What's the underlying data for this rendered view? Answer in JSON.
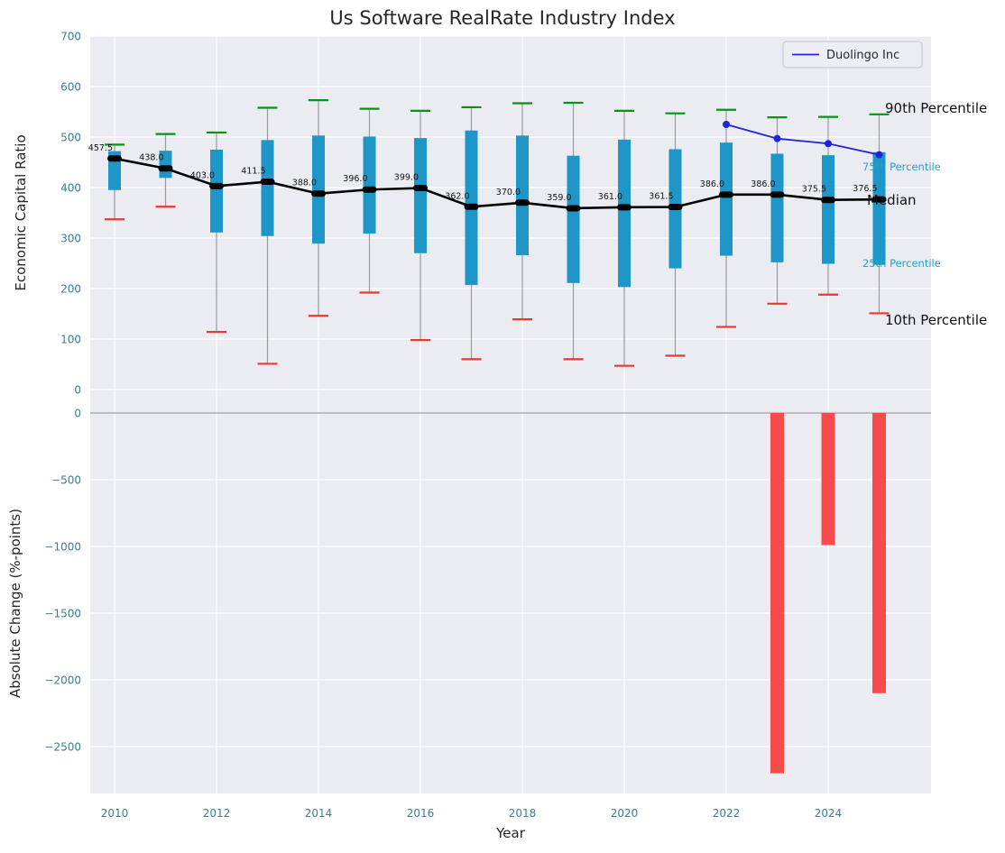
{
  "title": "Us Software RealRate Industry Index",
  "legend": {
    "label": "Duolingo Inc"
  },
  "annotations": {
    "p90": "90th Percentile",
    "p75": "75th Percentile",
    "median": "Median",
    "p25": "25th Percentile",
    "p10": "10th Percentile"
  },
  "top_axis": {
    "ylabel": "Economic Capital Ratio",
    "ylim": [
      0,
      700
    ],
    "yticks": [
      0,
      100,
      200,
      300,
      400,
      500,
      600,
      700
    ],
    "ytick_labels": [
      "0",
      "100",
      "200",
      "300",
      "400",
      "500",
      "600",
      "700"
    ]
  },
  "bottom_axis": {
    "ylabel": "Absolute Change (%-points)",
    "yticks": [
      0,
      -500,
      -1000,
      -1500,
      -2000,
      -2500
    ],
    "ytick_labels": [
      "0",
      "−500",
      "−1000",
      "−1500",
      "−2000",
      "−2500"
    ]
  },
  "x_axis": {
    "label": "Year",
    "ticks": [
      2010,
      2012,
      2014,
      2016,
      2018,
      2020,
      2022,
      2024
    ],
    "tick_labels": [
      "2010",
      "2012",
      "2014",
      "2016",
      "2018",
      "2020",
      "2022",
      "2024"
    ]
  },
  "colors": {
    "plot_bg": "#ebecf1",
    "grid": "#ffffff",
    "box": "#1e96c8",
    "p90": "#009612",
    "p10": "#e53935",
    "whisker": "#9a9a9a",
    "median": "#000000",
    "duolingo": "#2222dd",
    "bar": "#f74b4b",
    "divider": "#9e9e9e"
  },
  "chart_data": {
    "type": "box+line+bar",
    "years": [
      2010,
      2011,
      2012,
      2013,
      2014,
      2015,
      2016,
      2017,
      2018,
      2019,
      2020,
      2021,
      2022,
      2023,
      2024,
      2025
    ],
    "median": [
      457.5,
      438.0,
      403.0,
      411.5,
      388.0,
      396.0,
      399.0,
      362.0,
      370.0,
      359.0,
      361.0,
      361.5,
      386.0,
      386.0,
      375.5,
      376.5
    ],
    "median_labels": [
      "457.5",
      "438.0",
      "403.0",
      "411.5",
      "388.0",
      "396.0",
      "399.0",
      "362.0",
      "370.0",
      "359.0",
      "361.0",
      "361.5",
      "386.0",
      "386.0",
      "375.5",
      "376.5"
    ],
    "p90": [
      485,
      506,
      509,
      558,
      573,
      556,
      552,
      559,
      567,
      568,
      552,
      547,
      554,
      539,
      540,
      545
    ],
    "p75": [
      472,
      473,
      475,
      494,
      503,
      501,
      498,
      513,
      503,
      463,
      495,
      476,
      489,
      467,
      464,
      470
    ],
    "p25": [
      395,
      419,
      311,
      304,
      289,
      309,
      270,
      207,
      266,
      211,
      203,
      240,
      265,
      252,
      249,
      247
    ],
    "p10": [
      337,
      362,
      114,
      51,
      146,
      192,
      98,
      60,
      139,
      60,
      47,
      67,
      124,
      170,
      188,
      151
    ],
    "duolingo": {
      "years": [
        2022,
        2023,
        2024,
        2025
      ],
      "values": [
        525,
        497,
        487,
        465
      ]
    },
    "change_bars": {
      "years": [
        2023,
        2024,
        2025
      ],
      "values": [
        -2700,
        -990,
        -2100
      ]
    }
  }
}
